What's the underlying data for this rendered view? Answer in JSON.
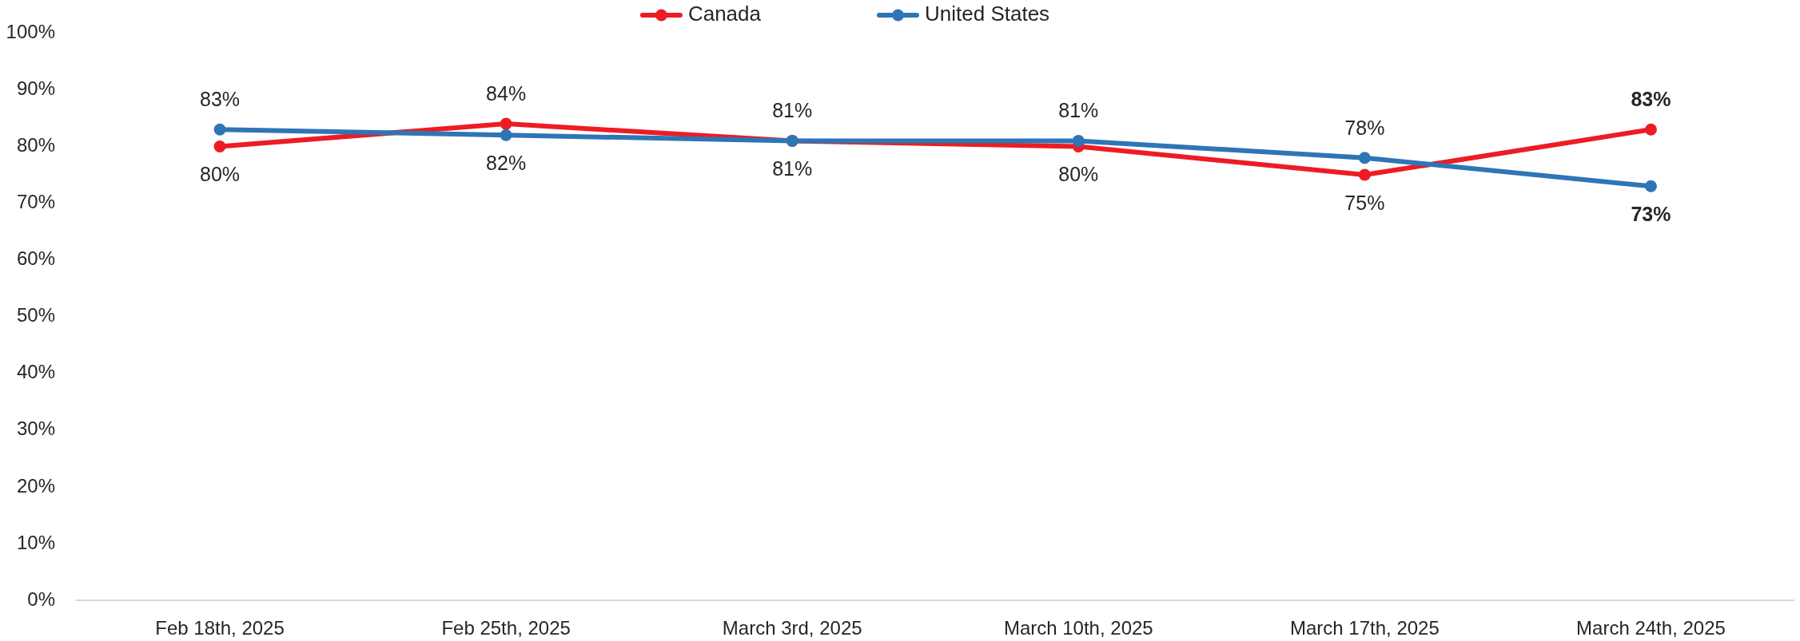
{
  "chart_data": {
    "type": "line",
    "categories": [
      "Feb 18th, 2025",
      "Feb 25th, 2025",
      "March 3rd, 2025",
      "March 10th, 2025",
      "March 17th, 2025",
      "March 24th, 2025"
    ],
    "series": [
      {
        "name": "Canada",
        "color": "#ed1c24",
        "values": [
          80,
          84,
          81,
          80,
          75,
          83
        ],
        "value_labels": [
          "80%",
          "84%",
          "81%",
          "80%",
          "75%",
          "83%"
        ]
      },
      {
        "name": "United States",
        "color": "#2e75b6",
        "values": [
          83,
          82,
          81,
          81,
          78,
          73
        ],
        "value_labels": [
          "83%",
          "82%",
          "81%",
          "81%",
          "78%",
          "73%"
        ]
      }
    ],
    "ylim": [
      0,
      100
    ],
    "yticks": [
      {
        "value": 0,
        "label": "0%"
      },
      {
        "value": 10,
        "label": "10%"
      },
      {
        "value": 20,
        "label": "20%"
      },
      {
        "value": 30,
        "label": "30%"
      },
      {
        "value": 40,
        "label": "40%"
      },
      {
        "value": 50,
        "label": "50%"
      },
      {
        "value": 60,
        "label": "60%"
      },
      {
        "value": 70,
        "label": "70%"
      },
      {
        "value": 80,
        "label": "80%"
      },
      {
        "value": 90,
        "label": "90%"
      },
      {
        "value": 100,
        "label": "100%"
      }
    ],
    "grid": false,
    "legend": "top",
    "marker": "circle",
    "line_style": "solid"
  }
}
